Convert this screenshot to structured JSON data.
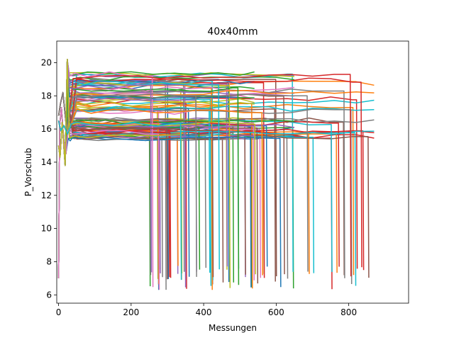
{
  "chart_data": {
    "type": "line",
    "title": "40x40mm",
    "xlabel": "Messungen",
    "ylabel": "P_Vorschub",
    "xlim": [
      -5,
      965
    ],
    "ylim": [
      5.5,
      21.3
    ],
    "xticks": [
      0,
      200,
      400,
      600,
      800
    ],
    "yticks": [
      6,
      8,
      10,
      12,
      14,
      16,
      18,
      20
    ],
    "grid": false,
    "legend": "none",
    "series_count": 120,
    "palette": [
      "#1f77b4",
      "#ff7f0e",
      "#2ca02c",
      "#d62728",
      "#9467bd",
      "#8c564b",
      "#e377c2",
      "#7f7f7f",
      "#bcbd22",
      "#17becf"
    ],
    "series_template": [
      {
        "x": [
          0,
          3,
          8,
          14,
          20,
          26,
          32,
          40,
          60,
          90,
          130,
          180,
          240,
          300,
          360,
          420,
          480,
          540,
          600,
          650
        ],
        "y": [
          7.0,
          16.2,
          17.3,
          15.4,
          14.5,
          16.8,
          15.1,
          15.8,
          15.7,
          15.6,
          15.7,
          15.5,
          15.7,
          15.6,
          15.8,
          15.7,
          15.6,
          15.7,
          15.8,
          6.5
        ]
      },
      {
        "x": [
          0,
          5,
          12,
          22,
          30,
          40,
          70,
          110,
          160,
          220,
          280,
          340,
          400,
          460,
          520,
          580,
          640,
          700,
          760,
          820,
          870
        ],
        "y": [
          16.8,
          17.5,
          18.2,
          16.0,
          17.0,
          18.5,
          18.7,
          18.8,
          19.0,
          19.1,
          19.2,
          19.2,
          19.1,
          19.2,
          19.2,
          19.1,
          19.2,
          19.2,
          19.1,
          19.2,
          7.6
        ]
      },
      {
        "x": [
          0,
          4,
          10,
          18,
          24,
          30,
          45,
          80,
          140,
          200,
          260,
          320,
          380,
          440,
          500,
          540
        ],
        "y": [
          15.0,
          14.3,
          16.4,
          13.8,
          20.2,
          11.5,
          15.8,
          15.9,
          16.0,
          15.9,
          16.0,
          15.9,
          16.1,
          16.0,
          15.9,
          6.4
        ]
      },
      {
        "x": [
          0,
          6,
          15,
          25,
          35,
          50,
          90,
          150,
          210,
          270,
          330,
          390,
          450,
          510,
          570,
          630,
          690,
          750,
          810,
          870,
          930,
          960
        ],
        "y": [
          16.5,
          15.9,
          16.2,
          15.7,
          16.3,
          16.1,
          16.2,
          16.0,
          16.1,
          16.2,
          16.1,
          16.2,
          16.0,
          16.1,
          16.2,
          16.1,
          16.0,
          16.1,
          16.2,
          16.1,
          16.0,
          16.1
        ]
      }
    ]
  }
}
